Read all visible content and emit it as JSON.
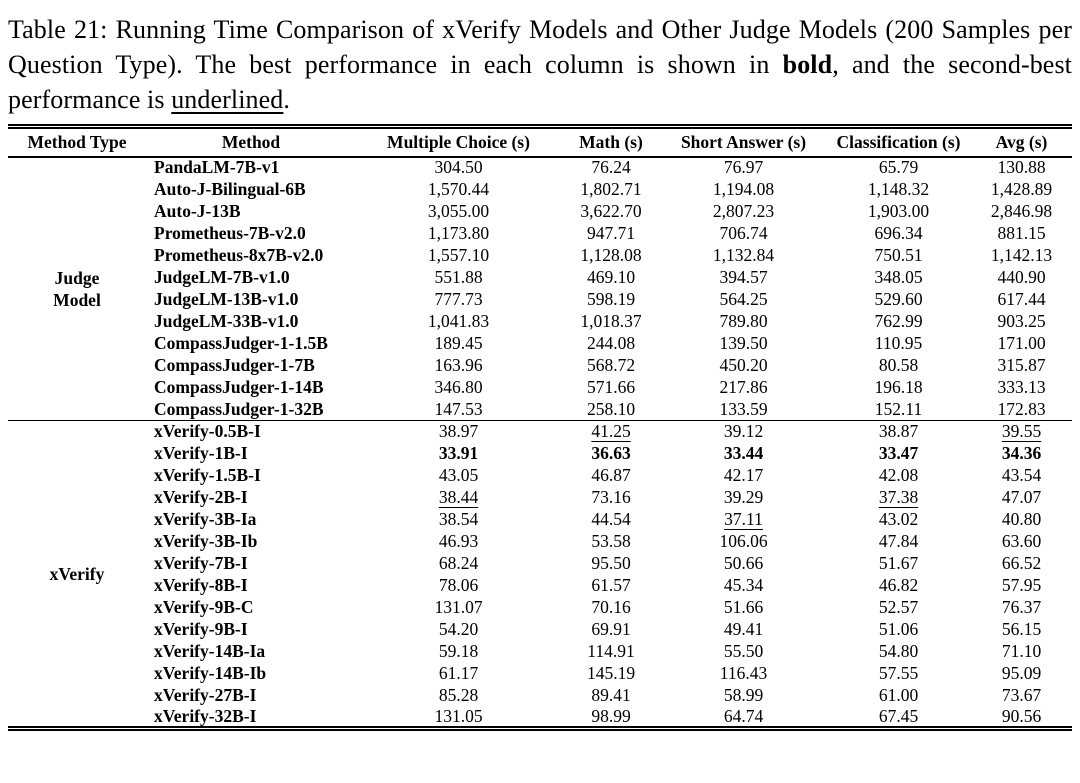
{
  "colors": {
    "text": "#000000",
    "background": "#ffffff",
    "rule": "#000000"
  },
  "caption": {
    "part1": "Table 21: Running Time Comparison of xVerify Models and Other Judge Models (200 Samples per Question Type). The best performance in each column is shown in ",
    "bold_word": "bold",
    "part2": ", and the second-best performance is ",
    "underlined_word": "underlined",
    "part3": "."
  },
  "table": {
    "columns": [
      "Method Type",
      "Method",
      "Multiple Choice (s)",
      "Math (s)",
      "Short Answer (s)",
      "Classification (s)",
      "Avg (s)"
    ],
    "groups": [
      {
        "type": "Judge Model",
        "type_lines": [
          "Judge",
          "Model"
        ],
        "rows": [
          {
            "method": "PandaLM-7B-v1",
            "values": [
              "304.50",
              "76.24",
              "76.97",
              "65.79",
              "130.88"
            ],
            "styles": [
              "",
              "",
              "",
              "",
              ""
            ]
          },
          {
            "method": "Auto-J-Bilingual-6B",
            "values": [
              "1,570.44",
              "1,802.71",
              "1,194.08",
              "1,148.32",
              "1,428.89"
            ],
            "styles": [
              "",
              "",
              "",
              "",
              ""
            ]
          },
          {
            "method": "Auto-J-13B",
            "values": [
              "3,055.00",
              "3,622.70",
              "2,807.23",
              "1,903.00",
              "2,846.98"
            ],
            "styles": [
              "",
              "",
              "",
              "",
              ""
            ]
          },
          {
            "method": "Prometheus-7B-v2.0",
            "values": [
              "1,173.80",
              "947.71",
              "706.74",
              "696.34",
              "881.15"
            ],
            "styles": [
              "",
              "",
              "",
              "",
              ""
            ]
          },
          {
            "method": "Prometheus-8x7B-v2.0",
            "values": [
              "1,557.10",
              "1,128.08",
              "1,132.84",
              "750.51",
              "1,142.13"
            ],
            "styles": [
              "",
              "",
              "",
              "",
              ""
            ]
          },
          {
            "method": "JudgeLM-7B-v1.0",
            "values": [
              "551.88",
              "469.10",
              "394.57",
              "348.05",
              "440.90"
            ],
            "styles": [
              "",
              "",
              "",
              "",
              ""
            ]
          },
          {
            "method": "JudgeLM-13B-v1.0",
            "values": [
              "777.73",
              "598.19",
              "564.25",
              "529.60",
              "617.44"
            ],
            "styles": [
              "",
              "",
              "",
              "",
              ""
            ]
          },
          {
            "method": "JudgeLM-33B-v1.0",
            "values": [
              "1,041.83",
              "1,018.37",
              "789.80",
              "762.99",
              "903.25"
            ],
            "styles": [
              "",
              "",
              "",
              "",
              ""
            ]
          },
          {
            "method": "CompassJudger-1-1.5B",
            "values": [
              "189.45",
              "244.08",
              "139.50",
              "110.95",
              "171.00"
            ],
            "styles": [
              "",
              "",
              "",
              "",
              ""
            ]
          },
          {
            "method": "CompassJudger-1-7B",
            "values": [
              "163.96",
              "568.72",
              "450.20",
              "80.58",
              "315.87"
            ],
            "styles": [
              "",
              "",
              "",
              "",
              ""
            ]
          },
          {
            "method": "CompassJudger-1-14B",
            "values": [
              "346.80",
              "571.66",
              "217.86",
              "196.18",
              "333.13"
            ],
            "styles": [
              "",
              "",
              "",
              "",
              ""
            ]
          },
          {
            "method": "CompassJudger-1-32B",
            "values": [
              "147.53",
              "258.10",
              "133.59",
              "152.11",
              "172.83"
            ],
            "styles": [
              "",
              "",
              "",
              "",
              ""
            ]
          }
        ]
      },
      {
        "type": "xVerify",
        "type_lines": [
          "xVerify"
        ],
        "rows": [
          {
            "method": "xVerify-0.5B-I",
            "values": [
              "38.97",
              "41.25",
              "39.12",
              "38.87",
              "39.55"
            ],
            "styles": [
              "",
              "u",
              "",
              "",
              "u"
            ]
          },
          {
            "method": "xVerify-1B-I",
            "values": [
              "33.91",
              "36.63",
              "33.44",
              "33.47",
              "34.36"
            ],
            "styles": [
              "b",
              "b",
              "b",
              "b",
              "b"
            ]
          },
          {
            "method": "xVerify-1.5B-I",
            "values": [
              "43.05",
              "46.87",
              "42.17",
              "42.08",
              "43.54"
            ],
            "styles": [
              "",
              "",
              "",
              "",
              ""
            ]
          },
          {
            "method": "xVerify-2B-I",
            "values": [
              "38.44",
              "73.16",
              "39.29",
              "37.38",
              "47.07"
            ],
            "styles": [
              "u",
              "",
              "",
              "u",
              ""
            ]
          },
          {
            "method": "xVerify-3B-Ia",
            "values": [
              "38.54",
              "44.54",
              "37.11",
              "43.02",
              "40.80"
            ],
            "styles": [
              "",
              "",
              "u",
              "",
              ""
            ]
          },
          {
            "method": "xVerify-3B-Ib",
            "values": [
              "46.93",
              "53.58",
              "106.06",
              "47.84",
              "63.60"
            ],
            "styles": [
              "",
              "",
              "",
              "",
              ""
            ]
          },
          {
            "method": "xVerify-7B-I",
            "values": [
              "68.24",
              "95.50",
              "50.66",
              "51.67",
              "66.52"
            ],
            "styles": [
              "",
              "",
              "",
              "",
              ""
            ]
          },
          {
            "method": "xVerify-8B-I",
            "values": [
              "78.06",
              "61.57",
              "45.34",
              "46.82",
              "57.95"
            ],
            "styles": [
              "",
              "",
              "",
              "",
              ""
            ]
          },
          {
            "method": "xVerify-9B-C",
            "values": [
              "131.07",
              "70.16",
              "51.66",
              "52.57",
              "76.37"
            ],
            "styles": [
              "",
              "",
              "",
              "",
              ""
            ]
          },
          {
            "method": "xVerify-9B-I",
            "values": [
              "54.20",
              "69.91",
              "49.41",
              "51.06",
              "56.15"
            ],
            "styles": [
              "",
              "",
              "",
              "",
              ""
            ]
          },
          {
            "method": "xVerify-14B-Ia",
            "values": [
              "59.18",
              "114.91",
              "55.50",
              "54.80",
              "71.10"
            ],
            "styles": [
              "",
              "",
              "",
              "",
              ""
            ]
          },
          {
            "method": "xVerify-14B-Ib",
            "values": [
              "61.17",
              "145.19",
              "116.43",
              "57.55",
              "95.09"
            ],
            "styles": [
              "",
              "",
              "",
              "",
              ""
            ]
          },
          {
            "method": "xVerify-27B-I",
            "values": [
              "85.28",
              "89.41",
              "58.99",
              "61.00",
              "73.67"
            ],
            "styles": [
              "",
              "",
              "",
              "",
              ""
            ]
          },
          {
            "method": "xVerify-32B-I",
            "values": [
              "131.05",
              "98.99",
              "64.74",
              "67.45",
              "90.56"
            ],
            "styles": [
              "",
              "",
              "",
              "",
              ""
            ]
          }
        ]
      }
    ]
  }
}
